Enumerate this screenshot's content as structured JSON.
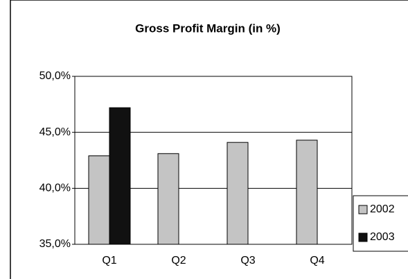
{
  "chart_data": {
    "type": "bar",
    "title": "Gross Profit Margin (in %)",
    "categories": [
      "Q1",
      "Q2",
      "Q3",
      "Q4"
    ],
    "series": [
      {
        "name": "2002",
        "color": "#c4c4c4",
        "values": [
          42.9,
          43.1,
          44.1,
          44.3
        ]
      },
      {
        "name": "2003",
        "color": "#111111",
        "values": [
          47.2,
          null,
          null,
          null
        ]
      }
    ],
    "ylim": [
      35,
      50
    ],
    "yticks": [
      {
        "value": 35,
        "label": "35,0%"
      },
      {
        "value": 40,
        "label": "40,0%"
      },
      {
        "value": 45,
        "label": "45,0%"
      },
      {
        "value": 50,
        "label": "50,0%"
      }
    ],
    "grid": true,
    "legend": "right"
  }
}
